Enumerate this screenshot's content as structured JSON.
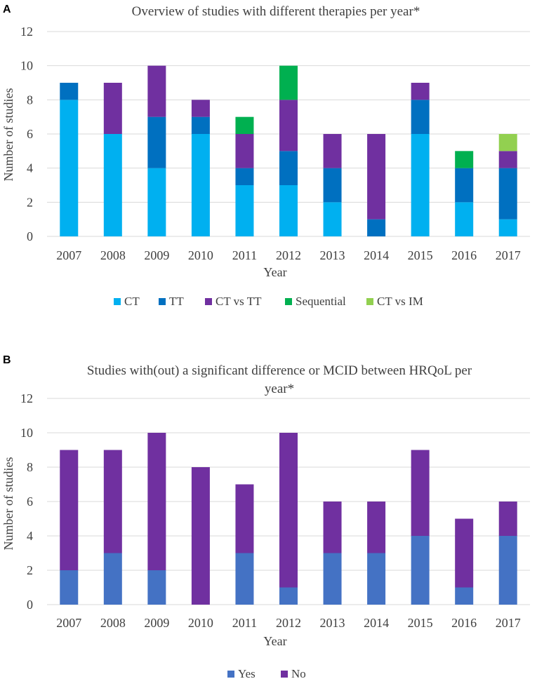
{
  "chart_data": [
    {
      "panel": "A",
      "type": "bar",
      "stacked": true,
      "title": "Overview of studies with different therapies per year*",
      "xlabel": "Year",
      "ylabel": "Number of studies",
      "ylim": [
        0,
        12
      ],
      "yticks": [
        0,
        2,
        4,
        6,
        8,
        10,
        12
      ],
      "categories": [
        "2007",
        "2008",
        "2009",
        "2010",
        "2011",
        "2012",
        "2013",
        "2014",
        "2015",
        "2016",
        "2017"
      ],
      "series": [
        {
          "name": "CT",
          "color": "#00B0F0",
          "values": [
            8,
            6,
            4,
            6,
            3,
            3,
            2,
            0,
            6,
            2,
            1
          ]
        },
        {
          "name": "TT",
          "color": "#0070C0",
          "values": [
            1,
            0,
            3,
            1,
            1,
            2,
            2,
            1,
            2,
            2,
            3
          ]
        },
        {
          "name": "CT vs TT",
          "color": "#7030A0",
          "values": [
            0,
            3,
            3,
            1,
            2,
            3,
            2,
            5,
            1,
            0,
            1
          ]
        },
        {
          "name": "Sequential",
          "color": "#00B050",
          "values": [
            0,
            0,
            0,
            0,
            1,
            2,
            0,
            0,
            0,
            1,
            0
          ]
        },
        {
          "name": "CT vs IM",
          "color": "#92D050",
          "values": [
            0,
            0,
            0,
            0,
            0,
            0,
            0,
            0,
            0,
            0,
            1
          ]
        }
      ],
      "legend": "bottom"
    },
    {
      "panel": "B",
      "type": "bar",
      "stacked": true,
      "title_lines": [
        "Studies with(out) a significant difference or MCID between HRQoL per",
        "year*"
      ],
      "xlabel": "Year",
      "ylabel": "Number of studies",
      "ylim": [
        0,
        12
      ],
      "yticks": [
        0,
        2,
        4,
        6,
        8,
        10,
        12
      ],
      "categories": [
        "2007",
        "2008",
        "2009",
        "2010",
        "2011",
        "2012",
        "2013",
        "2014",
        "2015",
        "2016",
        "2017"
      ],
      "series": [
        {
          "name": "Yes",
          "color": "#4472C4",
          "values": [
            2,
            3,
            2,
            0,
            3,
            1,
            3,
            3,
            4,
            1,
            4
          ]
        },
        {
          "name": "No",
          "color": "#7030A0",
          "values": [
            7,
            6,
            8,
            8,
            4,
            9,
            3,
            3,
            5,
            4,
            2
          ]
        }
      ],
      "legend": "bottom"
    }
  ]
}
